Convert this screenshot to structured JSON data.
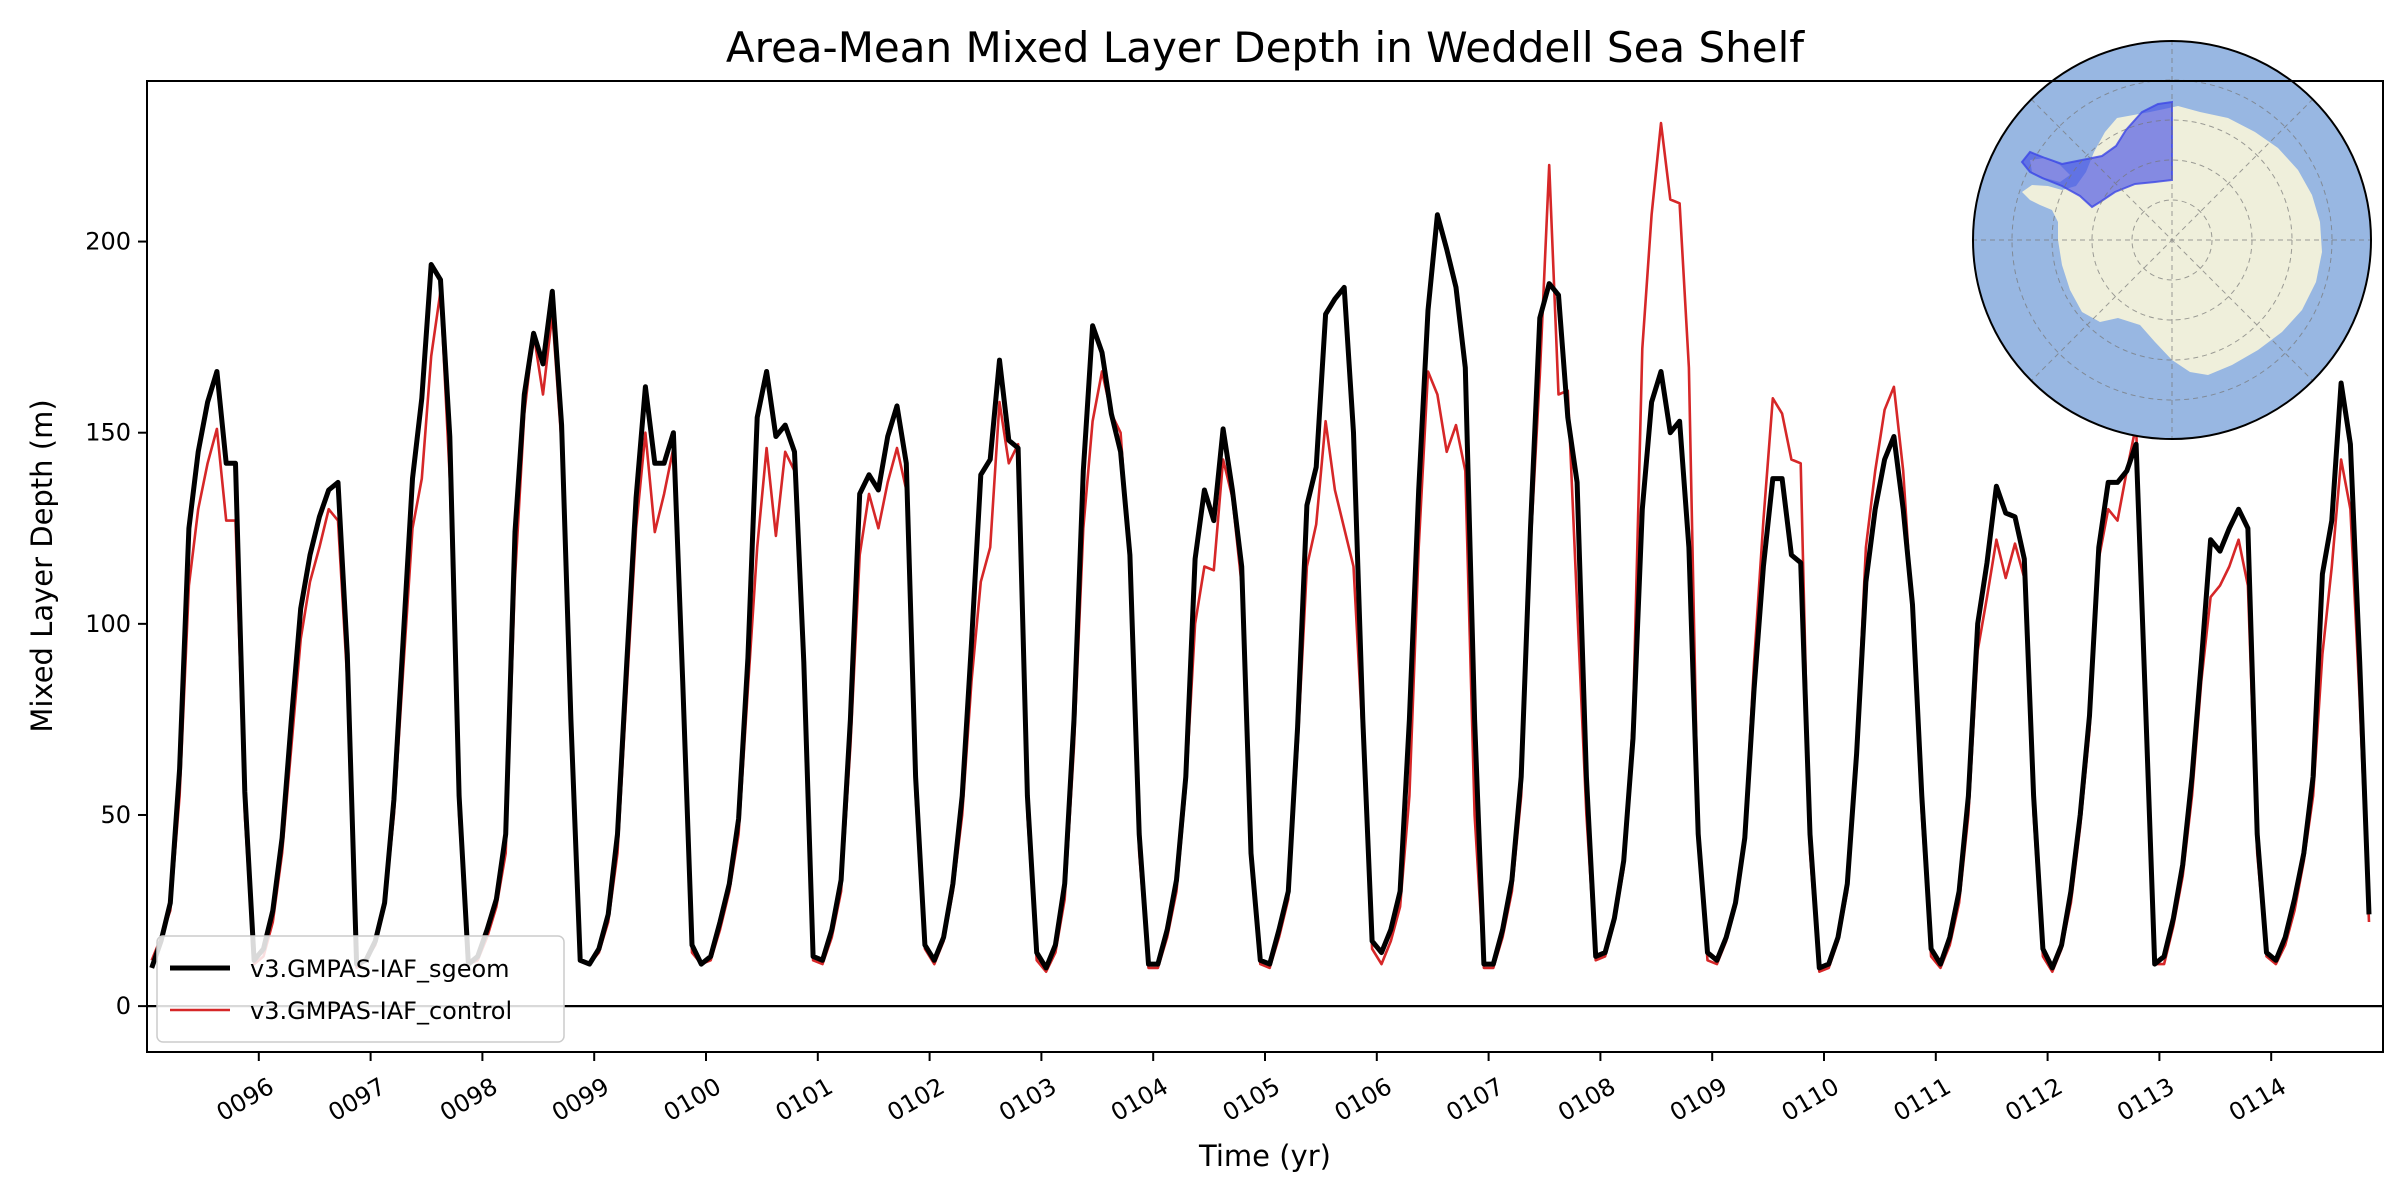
{
  "chart_data": {
    "type": "line",
    "title": "Area-Mean Mixed Layer Depth in Weddell Sea Shelf",
    "xlabel": "Time (yr)",
    "ylabel": "Mixed Layer Depth (m)",
    "xlim": [
      95.0,
      115.0
    ],
    "ylim": [
      -12,
      242
    ],
    "y_ticks": [
      0,
      50,
      100,
      150,
      200
    ],
    "x_ticks": [
      96,
      97,
      98,
      99,
      100,
      101,
      102,
      103,
      104,
      105,
      106,
      107,
      108,
      109,
      110,
      111,
      112,
      113,
      114
    ],
    "x_tick_labels": [
      "0096",
      "0097",
      "0098",
      "0099",
      "0100",
      "0101",
      "0102",
      "0103",
      "0104",
      "0105",
      "0106",
      "0107",
      "0108",
      "0109",
      "0110",
      "0111",
      "0112",
      "0113",
      "0114"
    ],
    "zero_line": 0,
    "legend_position": "lower-left",
    "colors": {
      "sgeom": "#000000",
      "control": "#d62728"
    },
    "series": [
      {
        "name": "v3.GMPAS-IAF_sgeom",
        "color": "#000000",
        "x_start": 95.0417,
        "x_step": 0.083333,
        "values": [
          10,
          17,
          27,
          62,
          125,
          145,
          158,
          166,
          142,
          142,
          56,
          12,
          15,
          25,
          44,
          75,
          104,
          118,
          128,
          135,
          137,
          92,
          11,
          12,
          17,
          27,
          54,
          96,
          138,
          159,
          194,
          190,
          149,
          55,
          11,
          13,
          20,
          28,
          45,
          124,
          160,
          176,
          168,
          187,
          152,
          75,
          12,
          11,
          15,
          24,
          45,
          90,
          133,
          162,
          142,
          142,
          150,
          85,
          16,
          11,
          13,
          22,
          32,
          49,
          91,
          154,
          166,
          149,
          152,
          145,
          90,
          13,
          12,
          20,
          33,
          75,
          134,
          139,
          135,
          149,
          157,
          142,
          60,
          16,
          12,
          18,
          32,
          55,
          95,
          139,
          143,
          169,
          148,
          146,
          55,
          14,
          10,
          16,
          32,
          75,
          140,
          178,
          171,
          155,
          145,
          118,
          45,
          11,
          11,
          20,
          33,
          60,
          117,
          135,
          127,
          151,
          135,
          115,
          40,
          12,
          11,
          20,
          30,
          73,
          131,
          141,
          181,
          185,
          188,
          150,
          75,
          17,
          14,
          20,
          30,
          75,
          135,
          182,
          207,
          198,
          188,
          167,
          75,
          11,
          11,
          20,
          33,
          60,
          125,
          180,
          189,
          186,
          154,
          137,
          60,
          13,
          14,
          23,
          38,
          70,
          130,
          158,
          166,
          150,
          153,
          120,
          45,
          14,
          12,
          18,
          27,
          44,
          83,
          115,
          138,
          138,
          118,
          116,
          45,
          10,
          11,
          18,
          32,
          66,
          111,
          130,
          143,
          149,
          130,
          105,
          55,
          15,
          11,
          18,
          30,
          55,
          100,
          116,
          136,
          129,
          128,
          117,
          55,
          15,
          10,
          16,
          30,
          50,
          76,
          120,
          137,
          137,
          140,
          147,
          80,
          11,
          13,
          23,
          37,
          60,
          90,
          122,
          119,
          125,
          130,
          125,
          45,
          14,
          12,
          18,
          28,
          40,
          60,
          113,
          127,
          163,
          147,
          90,
          24
        ]
      },
      {
        "name": "v3.GMPAS-IAF_control",
        "color": "#d62728",
        "x_start": 95.0417,
        "x_step": 0.083333,
        "values": [
          12,
          18,
          25,
          55,
          110,
          130,
          142,
          151,
          127,
          127,
          50,
          11,
          13,
          22,
          40,
          68,
          96,
          111,
          120,
          130,
          127,
          85,
          10,
          12,
          16,
          26,
          50,
          88,
          125,
          138,
          170,
          187,
          138,
          50,
          11,
          12,
          18,
          26,
          40,
          112,
          155,
          176,
          160,
          181,
          147,
          70,
          12,
          11,
          14,
          22,
          40,
          83,
          125,
          150,
          124,
          134,
          146,
          80,
          14,
          11,
          12,
          20,
          30,
          45,
          83,
          120,
          146,
          123,
          145,
          140,
          85,
          12,
          11,
          18,
          30,
          68,
          118,
          134,
          125,
          137,
          146,
          135,
          55,
          15,
          11,
          17,
          30,
          50,
          85,
          111,
          120,
          158,
          142,
          147,
          50,
          12,
          9,
          14,
          28,
          68,
          125,
          153,
          166,
          155,
          150,
          115,
          40,
          10,
          10,
          18,
          30,
          57,
          100,
          115,
          114,
          143,
          133,
          110,
          38,
          11,
          10,
          18,
          28,
          68,
          115,
          126,
          153,
          135,
          125,
          115,
          70,
          15,
          11,
          17,
          26,
          55,
          120,
          166,
          160,
          145,
          152,
          140,
          50,
          10,
          10,
          18,
          30,
          55,
          120,
          165,
          220,
          160,
          161,
          105,
          50,
          12,
          13,
          22,
          36,
          75,
          172,
          207,
          231,
          211,
          210,
          167,
          45,
          12,
          11,
          17,
          26,
          45,
          90,
          127,
          159,
          155,
          143,
          142,
          40,
          9,
          10,
          17,
          30,
          68,
          120,
          140,
          156,
          162,
          140,
          102,
          50,
          13,
          10,
          16,
          27,
          50,
          93,
          107,
          122,
          112,
          121,
          112,
          50,
          13,
          9,
          15,
          27,
          47,
          72,
          117,
          130,
          127,
          140,
          152,
          75,
          11,
          11,
          21,
          34,
          55,
          85,
          107,
          110,
          115,
          122,
          110,
          40,
          13,
          11,
          16,
          25,
          38,
          55,
          92,
          115,
          143,
          130,
          80,
          22
        ]
      }
    ],
    "inset_map": {
      "type": "south-polar-stereographic",
      "ocean_color": "#98b7e2",
      "land_color": "#efefdb",
      "region_color": "#3c46e6",
      "region_name": "Weddell Sea Shelf"
    }
  }
}
